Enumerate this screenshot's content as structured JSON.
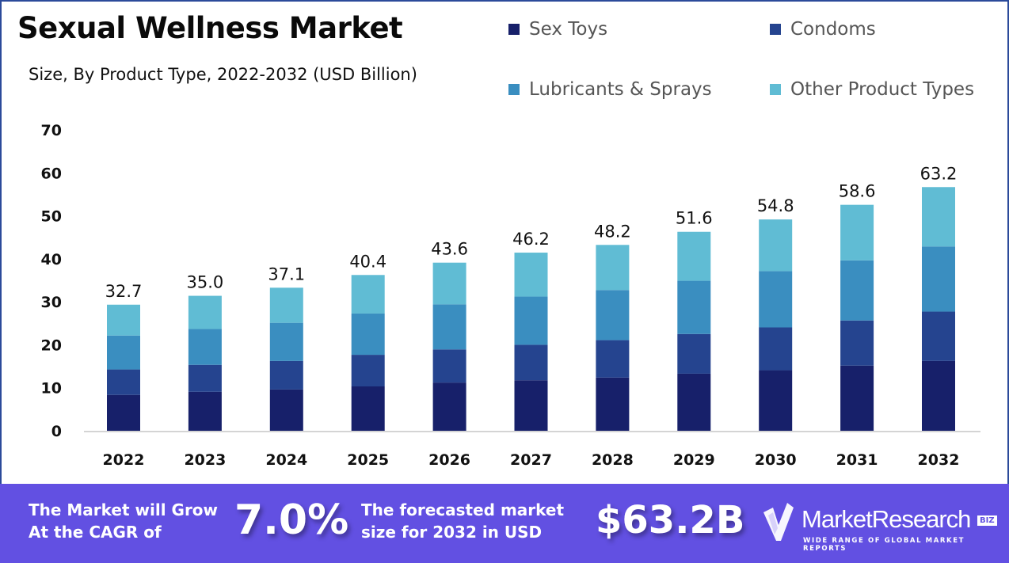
{
  "header": {
    "title": "Sexual Wellness Market",
    "subtitle": "Size, By Product Type, 2022-2032 (USD Billion)"
  },
  "legend": [
    {
      "label": "Sex Toys",
      "color": "#17206a"
    },
    {
      "label": "Condoms",
      "color": "#25448f"
    },
    {
      "label": "Lubricants & Sprays",
      "color": "#3a8ec0"
    },
    {
      "label": "Other Product Types",
      "color": "#60bcd4"
    }
  ],
  "chart_data": {
    "type": "bar",
    "stacked": true,
    "title": "Sexual Wellness Market",
    "subtitle": "Size, By Product Type, 2022-2032 (USD Billion)",
    "xlabel": "",
    "ylabel": "",
    "ylim": [
      0,
      70
    ],
    "yticks": [
      "0",
      "10",
      "20",
      "30",
      "40",
      "50",
      "60",
      "70"
    ],
    "grid": false,
    "legend_position": "top-right",
    "categories": [
      "2022",
      "2023",
      "2024",
      "2025",
      "2026",
      "2027",
      "2028",
      "2029",
      "2030",
      "2031",
      "2032"
    ],
    "series": [
      {
        "name": "Sex Toys",
        "color": "#17206a",
        "values": [
          9.3,
          10.1,
          10.7,
          11.5,
          12.5,
          13.1,
          13.8,
          14.8,
          15.7,
          16.9,
          18.1
        ]
      },
      {
        "name": "Condoms",
        "color": "#25448f",
        "values": [
          6.6,
          7.0,
          7.4,
          8.2,
          8.6,
          9.2,
          9.7,
          10.3,
          11.1,
          11.7,
          12.8
        ]
      },
      {
        "name": "Lubricants & Sprays",
        "color": "#3a8ec0",
        "values": [
          8.8,
          9.3,
          9.9,
          10.7,
          11.7,
          12.5,
          13.0,
          13.8,
          14.6,
          15.6,
          16.9
        ]
      },
      {
        "name": "Other Product Types",
        "color": "#60bcd4",
        "values": [
          8.0,
          8.6,
          9.1,
          10.0,
          10.8,
          11.4,
          11.7,
          12.7,
          13.4,
          14.4,
          15.4
        ]
      }
    ],
    "totals": [
      "32.7",
      "35.0",
      "37.1",
      "40.4",
      "43.6",
      "46.2",
      "48.2",
      "51.6",
      "54.8",
      "58.6",
      "63.2"
    ]
  },
  "footer": {
    "cagr_text_line1": "The Market will Grow",
    "cagr_text_line2": "At the CAGR of",
    "cagr_value": "7.0%",
    "forecast_text_line1": "The forecasted market",
    "forecast_text_line2": "size for 2032 in USD",
    "forecast_value": "$63.2B",
    "brand_name": "MarketResearch",
    "brand_badge": "BIZ",
    "brand_tagline": "WIDE RANGE OF GLOBAL MARKET REPORTS",
    "background_color": "#6250e2"
  }
}
